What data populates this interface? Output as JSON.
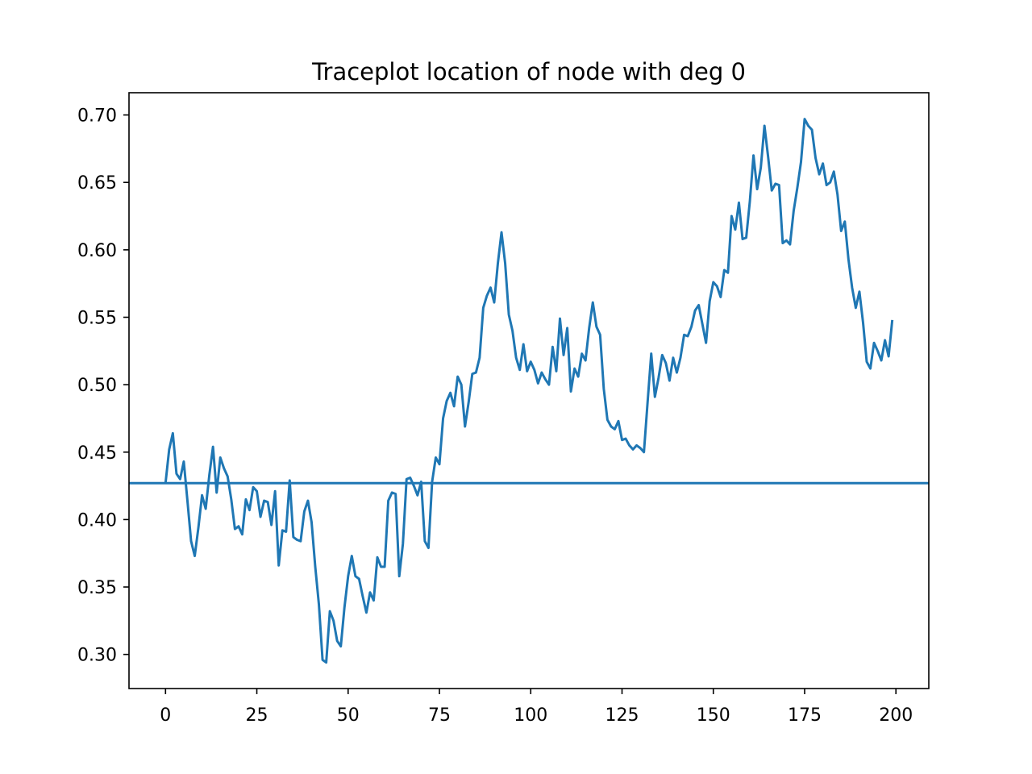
{
  "chart_data": {
    "type": "line",
    "title": "Traceplot location of node with deg 0",
    "xlabel": "",
    "ylabel": "",
    "xlim": [
      -10,
      209
    ],
    "ylim": [
      0.2747,
      0.7165
    ],
    "xticks": [
      0,
      25,
      50,
      75,
      100,
      125,
      150,
      175,
      200
    ],
    "yticks": [
      0.3,
      0.35,
      0.4,
      0.45,
      0.5,
      0.55,
      0.6,
      0.65,
      0.7
    ],
    "ytick_labels": [
      "0.30",
      "0.35",
      "0.40",
      "0.45",
      "0.50",
      "0.55",
      "0.60",
      "0.65",
      "0.70"
    ],
    "grid": false,
    "line_color": "#1f77b4",
    "series": [
      {
        "x": [
          0,
          1,
          2,
          3,
          4,
          5,
          6,
          7,
          8,
          9,
          10,
          11,
          12,
          13,
          14,
          15,
          16,
          17,
          18,
          19,
          20,
          21,
          22,
          23,
          24,
          25,
          26,
          27,
          28,
          29,
          30,
          31,
          32,
          33,
          34,
          35,
          36,
          37,
          38,
          39,
          40,
          41,
          42,
          43,
          44,
          45,
          46,
          47,
          48,
          49,
          50,
          51,
          52,
          53,
          54,
          55,
          56,
          57,
          58,
          59,
          60,
          61,
          62,
          63,
          64,
          65,
          66,
          67,
          68,
          69,
          70,
          71,
          72,
          73,
          74,
          75,
          76,
          77,
          78,
          79,
          80,
          81,
          82,
          83,
          84,
          85,
          86,
          87,
          88,
          89,
          90,
          91,
          92,
          93,
          94,
          95,
          96,
          97,
          98,
          99,
          100,
          101,
          102,
          103,
          104,
          105,
          106,
          107,
          108,
          109,
          110,
          111,
          112,
          113,
          114,
          115,
          116,
          117,
          118,
          119,
          120,
          121,
          122,
          123,
          124,
          125,
          126,
          127,
          128,
          129,
          130,
          131,
          132,
          133,
          134,
          135,
          136,
          137,
          138,
          139,
          140,
          141,
          142,
          143,
          144,
          145,
          146,
          147,
          148,
          149,
          150,
          151,
          152,
          153,
          154,
          155,
          156,
          157,
          158,
          159,
          160,
          161,
          162,
          163,
          164,
          165,
          166,
          167,
          168,
          169,
          170,
          171,
          172,
          173,
          174,
          175,
          176,
          177,
          178,
          179,
          180,
          181,
          182,
          183,
          184,
          185,
          186,
          187,
          188,
          189,
          190,
          191,
          192,
          193,
          194,
          195,
          196,
          197,
          198,
          199
        ],
        "values": [
          0.427,
          0.452,
          0.464,
          0.434,
          0.43,
          0.443,
          0.414,
          0.384,
          0.373,
          0.394,
          0.418,
          0.408,
          0.433,
          0.454,
          0.42,
          0.446,
          0.438,
          0.432,
          0.415,
          0.393,
          0.395,
          0.389,
          0.415,
          0.407,
          0.424,
          0.421,
          0.402,
          0.414,
          0.413,
          0.396,
          0.421,
          0.366,
          0.392,
          0.391,
          0.429,
          0.387,
          0.385,
          0.384,
          0.406,
          0.414,
          0.398,
          0.365,
          0.337,
          0.296,
          0.294,
          0.332,
          0.325,
          0.31,
          0.306,
          0.335,
          0.358,
          0.373,
          0.358,
          0.356,
          0.343,
          0.331,
          0.346,
          0.34,
          0.372,
          0.365,
          0.365,
          0.414,
          0.42,
          0.419,
          0.358,
          0.382,
          0.43,
          0.431,
          0.425,
          0.418,
          0.428,
          0.384,
          0.379,
          0.428,
          0.446,
          0.441,
          0.475,
          0.488,
          0.494,
          0.484,
          0.506,
          0.5,
          0.469,
          0.487,
          0.508,
          0.509,
          0.52,
          0.557,
          0.566,
          0.572,
          0.561,
          0.59,
          0.613,
          0.59,
          0.552,
          0.54,
          0.52,
          0.511,
          0.53,
          0.51,
          0.517,
          0.511,
          0.501,
          0.509,
          0.504,
          0.5,
          0.528,
          0.51,
          0.549,
          0.522,
          0.542,
          0.495,
          0.512,
          0.506,
          0.523,
          0.518,
          0.542,
          0.561,
          0.543,
          0.537,
          0.497,
          0.474,
          0.469,
          0.467,
          0.473,
          0.459,
          0.46,
          0.455,
          0.452,
          0.455,
          0.453,
          0.45,
          0.487,
          0.523,
          0.491,
          0.505,
          0.522,
          0.516,
          0.503,
          0.52,
          0.509,
          0.52,
          0.537,
          0.536,
          0.543,
          0.555,
          0.559,
          0.545,
          0.531,
          0.562,
          0.576,
          0.573,
          0.565,
          0.585,
          0.583,
          0.625,
          0.615,
          0.635,
          0.608,
          0.609,
          0.636,
          0.67,
          0.645,
          0.661,
          0.692,
          0.669,
          0.644,
          0.649,
          0.648,
          0.605,
          0.607,
          0.604,
          0.629,
          0.646,
          0.665,
          0.697,
          0.692,
          0.689,
          0.668,
          0.656,
          0.664,
          0.648,
          0.65,
          0.658,
          0.641,
          0.614,
          0.621,
          0.593,
          0.572,
          0.557,
          0.569,
          0.546,
          0.517,
          0.512,
          0.531,
          0.525,
          0.518,
          0.533,
          0.521,
          0.548
        ]
      }
    ],
    "hline": {
      "y": 0.427
    }
  }
}
